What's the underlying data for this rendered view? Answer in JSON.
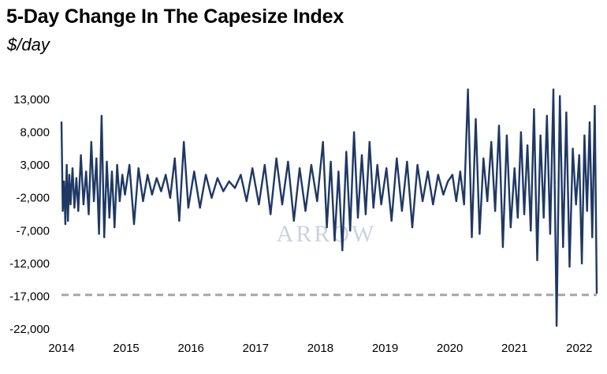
{
  "chart_data": {
    "type": "line",
    "title": "5-Day Change In The Capesize Index",
    "subtitle": "$/day",
    "xlabel": "",
    "ylabel": "",
    "watermark": "ARROW",
    "x_tick_labels": [
      "2014",
      "2015",
      "2016",
      "2017",
      "2018",
      "2019",
      "2020",
      "2021",
      "2022"
    ],
    "y_tick_values": [
      13000,
      8000,
      3000,
      -2000,
      -7000,
      -12000,
      -17000,
      -22000
    ],
    "y_tick_labels": [
      "13,000",
      "8,000",
      "3,000",
      "-2,000",
      "-7,000",
      "-12,000",
      "-17,000",
      "-22,000"
    ],
    "xlim": [
      2014.0,
      2022.27
    ],
    "ylim": [
      -22000,
      13000
    ],
    "grid": false,
    "legend": "none",
    "series_color": "#1f3864",
    "reference_line": {
      "value": -16800,
      "style": "dashed",
      "color": "#a6a6a6"
    },
    "series": [
      {
        "x": [
          2014.0,
          2014.02,
          2014.04,
          2014.06,
          2014.08,
          2014.1,
          2014.12,
          2014.14,
          2014.17,
          2014.2,
          2014.23,
          2014.26,
          2014.3,
          2014.34,
          2014.38,
          2014.42,
          2014.46,
          2014.5,
          2014.54,
          2014.58,
          2014.62,
          2014.66,
          2014.7,
          2014.74,
          2014.78,
          2014.82,
          2014.86,
          2014.9,
          2014.94,
          2014.98,
          2015.05,
          2015.12,
          2015.19,
          2015.26,
          2015.33,
          2015.4,
          2015.47,
          2015.54,
          2015.61,
          2015.68,
          2015.75,
          2015.82,
          2015.89,
          2015.96,
          2016.05,
          2016.14,
          2016.23,
          2016.32,
          2016.41,
          2016.5,
          2016.59,
          2016.68,
          2016.77,
          2016.86,
          2016.95,
          2017.05,
          2017.14,
          2017.23,
          2017.32,
          2017.41,
          2017.5,
          2017.59,
          2017.68,
          2017.77,
          2017.86,
          2017.95,
          2018.04,
          2018.1,
          2018.16,
          2018.22,
          2018.28,
          2018.34,
          2018.4,
          2018.46,
          2018.52,
          2018.58,
          2018.64,
          2018.7,
          2018.76,
          2018.82,
          2018.88,
          2018.94,
          2019.02,
          2019.1,
          2019.18,
          2019.26,
          2019.34,
          2019.42,
          2019.5,
          2019.58,
          2019.66,
          2019.74,
          2019.82,
          2019.9,
          2019.97,
          2020.04,
          2020.1,
          2020.16,
          2020.22,
          2020.28,
          2020.34,
          2020.4,
          2020.46,
          2020.52,
          2020.58,
          2020.64,
          2020.7,
          2020.76,
          2020.82,
          2020.88,
          2020.94,
          2021.0,
          2021.05,
          2021.1,
          2021.15,
          2021.2,
          2021.25,
          2021.3,
          2021.35,
          2021.4,
          2021.45,
          2021.5,
          2021.55,
          2021.6,
          2021.65,
          2021.7,
          2021.75,
          2021.8,
          2021.85,
          2021.9,
          2021.95,
          2022.0,
          2022.04,
          2022.08,
          2022.12,
          2022.16,
          2022.2,
          2022.24,
          2022.27
        ],
        "y": [
          9500,
          -4000,
          500,
          -6000,
          3000,
          -5500,
          1500,
          -3000,
          2500,
          -3500,
          1000,
          -4000,
          4500,
          -3000,
          2000,
          -4500,
          6500,
          -2500,
          4000,
          -7500,
          10500,
          -8000,
          3500,
          -5000,
          2000,
          -6500,
          3000,
          -2500,
          1500,
          -1500,
          3000,
          -6000,
          2500,
          -2500,
          1500,
          -1500,
          1000,
          -1000,
          1500,
          -2000,
          4000,
          -5500,
          6500,
          -3500,
          2000,
          -3500,
          1500,
          -2000,
          1000,
          -1000,
          500,
          -500,
          1500,
          -2500,
          2500,
          -3000,
          3000,
          -4500,
          4000,
          -3000,
          3500,
          -5500,
          2500,
          -4000,
          3000,
          -2500,
          6500,
          -6500,
          3500,
          -8500,
          2000,
          -10000,
          5000,
          -7000,
          8000,
          -5000,
          4500,
          -4500,
          6500,
          -3500,
          3000,
          -3000,
          2500,
          -5500,
          4000,
          -4000,
          3500,
          -6500,
          3000,
          -2500,
          2000,
          -3000,
          1500,
          -1500,
          500,
          1500,
          -2500,
          2000,
          -3000,
          14500,
          -8000,
          10000,
          -7500,
          4000,
          -2500,
          6500,
          -4000,
          9000,
          -9500,
          7500,
          -6500,
          2500,
          -5000,
          8000,
          -4500,
          6000,
          -7000,
          11500,
          -11500,
          7500,
          -5000,
          10500,
          -7500,
          14500,
          -21500,
          13500,
          -9500,
          11000,
          -12500,
          5500,
          -3000,
          4500,
          -12000,
          7500,
          -4000,
          9500,
          -8000,
          12000,
          -16500
        ]
      }
    ]
  }
}
